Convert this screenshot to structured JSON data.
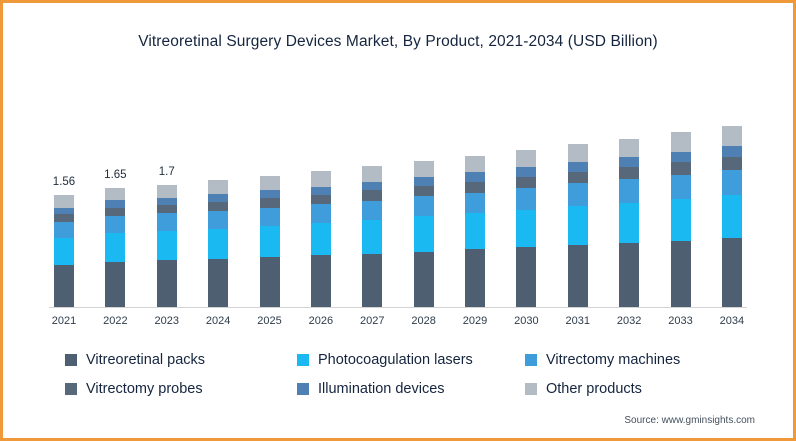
{
  "frame": {
    "border_color": "#f0993a",
    "baseline_color": "#d4d4d4"
  },
  "source_label": "Source: www.gminsights.com",
  "chart_data": {
    "type": "bar",
    "stacked": true,
    "title": "Vitreoretinal Surgery Devices Market, By Product, 2021-2034 (USD Billion)",
    "xlabel": "",
    "ylabel": "",
    "ylim": [
      0,
      2.9
    ],
    "grid": false,
    "legend_position": "bottom",
    "categories": [
      "2021",
      "2022",
      "2023",
      "2024",
      "2025",
      "2026",
      "2027",
      "2028",
      "2029",
      "2030",
      "2031",
      "2032",
      "2033",
      "2034"
    ],
    "series": [
      {
        "name": "Vitreoretinal packs",
        "color": "#4d5f71",
        "values": [
          0.59,
          0.63,
          0.65,
          0.67,
          0.69,
          0.72,
          0.74,
          0.77,
          0.8,
          0.83,
          0.86,
          0.89,
          0.92,
          0.96
        ]
      },
      {
        "name": "Photocoagulation lasers",
        "color": "#1ab9f2",
        "values": [
          0.37,
          0.4,
          0.41,
          0.42,
          0.44,
          0.45,
          0.47,
          0.49,
          0.5,
          0.52,
          0.54,
          0.56,
          0.58,
          0.6
        ]
      },
      {
        "name": "Vitrectomy machines",
        "color": "#3f9ddb",
        "values": [
          0.22,
          0.23,
          0.24,
          0.25,
          0.25,
          0.26,
          0.27,
          0.28,
          0.29,
          0.31,
          0.32,
          0.33,
          0.34,
          0.35
        ]
      },
      {
        "name": "Vitrectomy probes",
        "color": "#56687a",
        "values": [
          0.11,
          0.12,
          0.12,
          0.12,
          0.13,
          0.13,
          0.14,
          0.14,
          0.15,
          0.15,
          0.16,
          0.16,
          0.17,
          0.18
        ]
      },
      {
        "name": "Illumination devices",
        "color": "#4e80b3",
        "values": [
          0.09,
          0.1,
          0.1,
          0.11,
          0.11,
          0.11,
          0.12,
          0.12,
          0.13,
          0.13,
          0.14,
          0.14,
          0.15,
          0.15
        ]
      },
      {
        "name": "Other products",
        "color": "#b3bcc5",
        "values": [
          0.18,
          0.17,
          0.18,
          0.19,
          0.2,
          0.22,
          0.22,
          0.23,
          0.23,
          0.24,
          0.24,
          0.26,
          0.27,
          0.28
        ]
      }
    ],
    "totals": [
      1.56,
      1.65,
      1.7,
      1.76,
      1.82,
      1.89,
      1.96,
      2.03,
      2.1,
      2.18,
      2.26,
      2.34,
      2.43,
      2.52
    ],
    "value_labels": [
      "1.56",
      "1.65",
      "1.7",
      "",
      "",
      "",
      "",
      "",
      "",
      "",
      "",
      "",
      "",
      ""
    ]
  }
}
